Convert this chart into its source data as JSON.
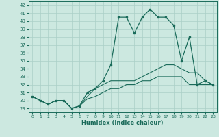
{
  "xlabel": "Humidex (Indice chaleur)",
  "background_color": "#cce8e0",
  "line_color": "#1a6b5a",
  "grid_color": "#aacfc7",
  "xlim": [
    -0.5,
    23.5
  ],
  "ylim": [
    28.5,
    42.5
  ],
  "yticks": [
    29,
    30,
    31,
    32,
    33,
    34,
    35,
    36,
    37,
    38,
    39,
    40,
    41,
    42
  ],
  "xticks": [
    0,
    1,
    2,
    3,
    4,
    5,
    6,
    7,
    8,
    9,
    10,
    11,
    12,
    13,
    14,
    15,
    16,
    17,
    18,
    19,
    20,
    21,
    22,
    23
  ],
  "xtick_labels": [
    "0",
    "1",
    "2",
    "3",
    "4",
    "5",
    "6",
    "7",
    "8",
    "9",
    "10",
    "11",
    "12",
    "13",
    "14",
    "15",
    "16",
    "17",
    "18",
    "19",
    "20",
    "21",
    "22",
    "23"
  ],
  "main_series": [
    30.5,
    30.0,
    29.5,
    30.0,
    30.0,
    29.0,
    29.3,
    31.0,
    31.5,
    32.5,
    34.5,
    40.5,
    40.5,
    38.5,
    40.5,
    41.5,
    40.5,
    40.5,
    39.5,
    35.0,
    38.0,
    32.0,
    32.5,
    32.0
  ],
  "line2_series": [
    30.5,
    30.0,
    29.5,
    30.0,
    30.0,
    29.0,
    29.3,
    30.5,
    31.5,
    32.0,
    32.5,
    32.5,
    32.5,
    32.5,
    33.0,
    33.5,
    34.0,
    34.5,
    34.5,
    34.0,
    33.5,
    33.5,
    32.5,
    32.0
  ],
  "line3_series": [
    30.5,
    30.0,
    29.5,
    30.0,
    30.0,
    29.0,
    29.3,
    30.2,
    30.5,
    31.0,
    31.5,
    31.5,
    32.0,
    32.0,
    32.5,
    32.5,
    33.0,
    33.0,
    33.0,
    33.0,
    32.0,
    32.0,
    32.0,
    32.0
  ]
}
